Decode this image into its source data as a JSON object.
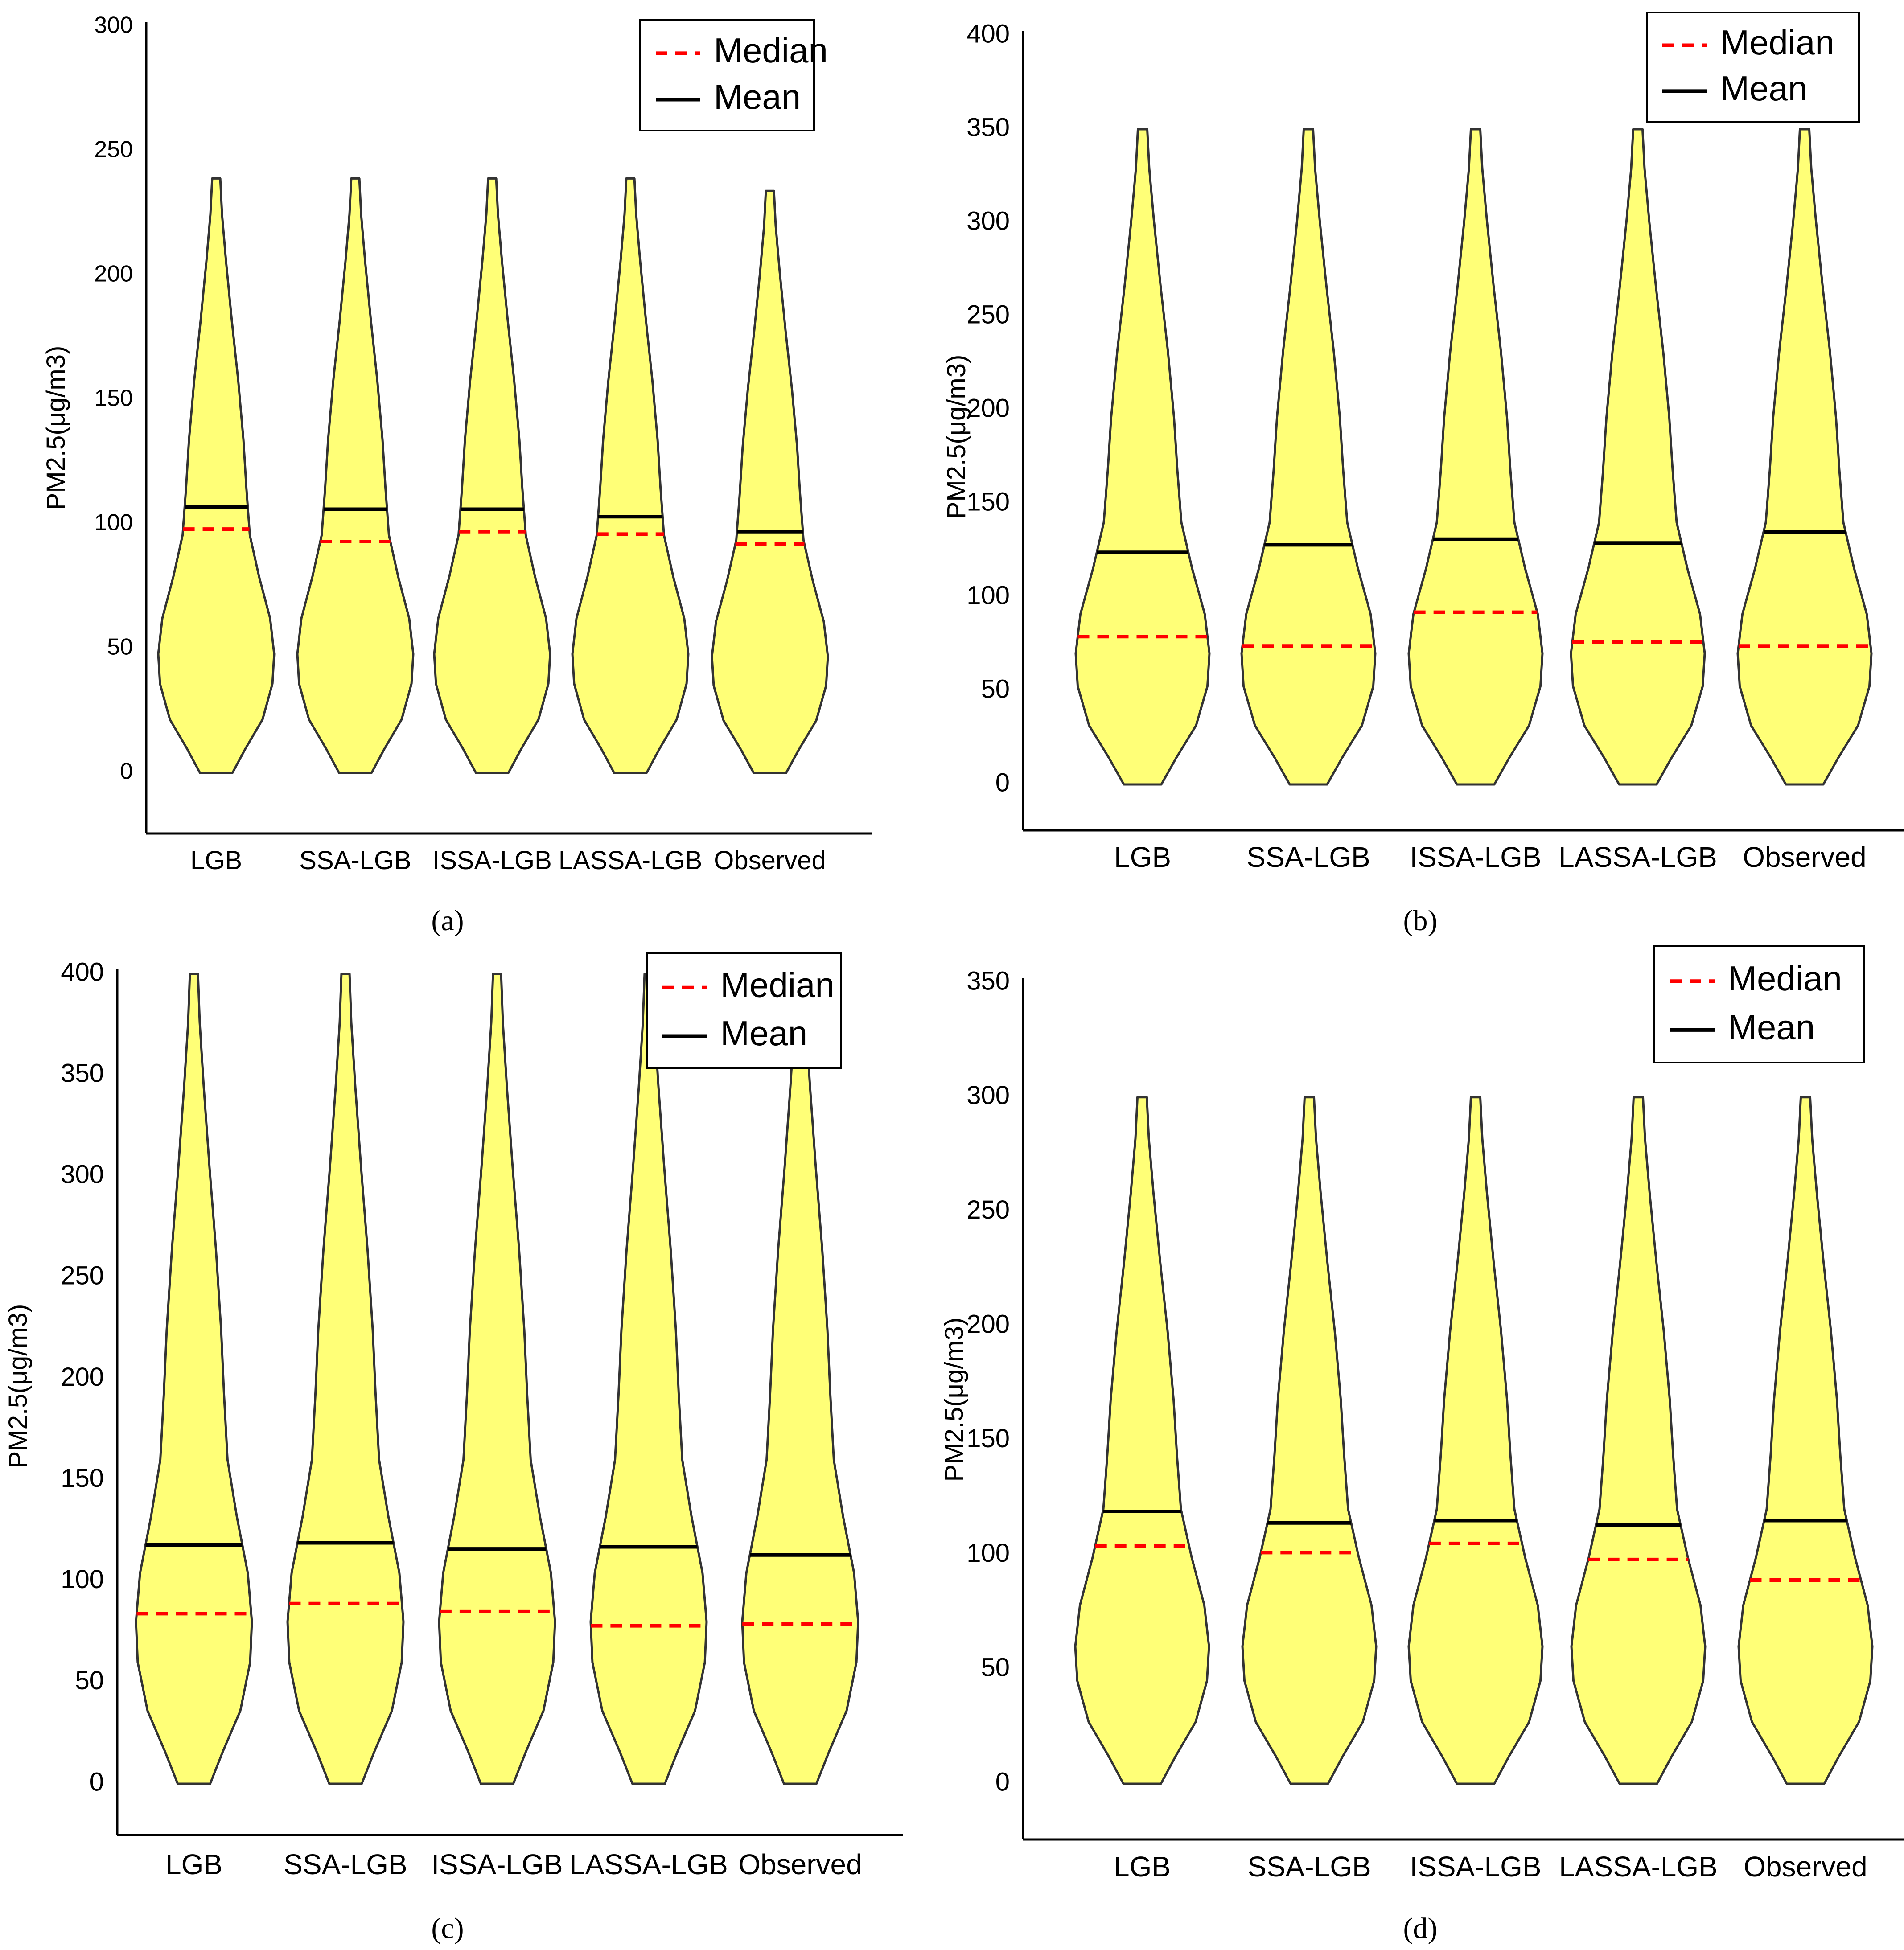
{
  "figure": {
    "colors": {
      "fill": "#ffff77",
      "outline": "#333333",
      "mean": "#000000",
      "median": "#ff0000"
    }
  },
  "chart_data": [
    {
      "type": "violin",
      "panel_label": "a",
      "ylabel": "PM2.5(μg/m3)",
      "ylim": [
        -25,
        300
      ],
      "yticks": [
        0,
        50,
        100,
        150,
        200,
        250,
        300
      ],
      "categories": [
        "LGB",
        "SSA-LGB",
        "ISSA-LGB",
        "LASSA-LGB",
        "Observed"
      ],
      "legend": {
        "median_label": "Median",
        "mean_label": "Mean",
        "position": "top-right"
      },
      "series": [
        {
          "name": "LGB",
          "mean": 107,
          "median": 98,
          "max": 239
        },
        {
          "name": "SSA-LGB",
          "mean": 106,
          "median": 93,
          "max": 239
        },
        {
          "name": "ISSA-LGB",
          "mean": 106,
          "median": 97,
          "max": 239
        },
        {
          "name": "LASSA-LGB",
          "mean": 103,
          "median": 96,
          "max": 239
        },
        {
          "name": "Observed",
          "mean": 97,
          "median": 92,
          "max": 234
        }
      ]
    },
    {
      "type": "violin",
      "panel_label": "b",
      "ylabel": "PM2.5(μg/m3)",
      "ylim": [
        -25,
        400
      ],
      "yticks": [
        0,
        50,
        100,
        150,
        200,
        250,
        300,
        350,
        400
      ],
      "categories": [
        "LGB",
        "SSA-LGB",
        "ISSA-LGB",
        "LASSA-LGB",
        "Observed"
      ],
      "legend": {
        "median_label": "Median",
        "mean_label": "Mean",
        "position": "top-right"
      },
      "series": [
        {
          "name": "LGB",
          "mean": 124,
          "median": 79,
          "max": 350
        },
        {
          "name": "SSA-LGB",
          "mean": 128,
          "median": 74,
          "max": 350
        },
        {
          "name": "ISSA-LGB",
          "mean": 131,
          "median": 92,
          "max": 350
        },
        {
          "name": "LASSA-LGB",
          "mean": 129,
          "median": 76,
          "max": 350
        },
        {
          "name": "Observed",
          "mean": 135,
          "median": 74,
          "max": 350
        }
      ]
    },
    {
      "type": "violin",
      "panel_label": "c",
      "ylabel": "PM2.5(μg/m3)",
      "ylim": [
        -25,
        400
      ],
      "yticks": [
        0,
        50,
        100,
        150,
        200,
        250,
        300,
        350,
        400
      ],
      "categories": [
        "LGB",
        "SSA-LGB",
        "ISSA-LGB",
        "LASSA-LGB",
        "Observed"
      ],
      "legend": {
        "median_label": "Median",
        "mean_label": "Mean",
        "position": "top-right"
      },
      "series": [
        {
          "name": "LGB",
          "mean": 118,
          "median": 84,
          "max": 400
        },
        {
          "name": "SSA-LGB",
          "mean": 119,
          "median": 89,
          "max": 400
        },
        {
          "name": "ISSA-LGB",
          "mean": 116,
          "median": 85,
          "max": 400
        },
        {
          "name": "LASSA-LGB",
          "mean": 117,
          "median": 78,
          "max": 400
        },
        {
          "name": "Observed",
          "mean": 113,
          "median": 79,
          "max": 400
        }
      ]
    },
    {
      "type": "violin",
      "panel_label": "d",
      "ylabel": "PM2.5(μg/m3)",
      "ylim": [
        -25,
        350
      ],
      "yticks": [
        0,
        50,
        100,
        150,
        200,
        250,
        300,
        350
      ],
      "categories": [
        "LGB",
        "SSA-LGB",
        "ISSA-LGB",
        "LASSA-LGB",
        "Observed"
      ],
      "legend": {
        "median_label": "Median",
        "mean_label": "Mean",
        "position": "top-right"
      },
      "series": [
        {
          "name": "LGB",
          "mean": 119,
          "median": 104,
          "max": 300
        },
        {
          "name": "SSA-LGB",
          "mean": 114,
          "median": 101,
          "max": 300
        },
        {
          "name": "ISSA-LGB",
          "mean": 115,
          "median": 105,
          "max": 300
        },
        {
          "name": "LASSA-LGB",
          "mean": 113,
          "median": 98,
          "max": 300
        },
        {
          "name": "Observed",
          "mean": 115,
          "median": 89,
          "max": 300
        }
      ]
    }
  ]
}
